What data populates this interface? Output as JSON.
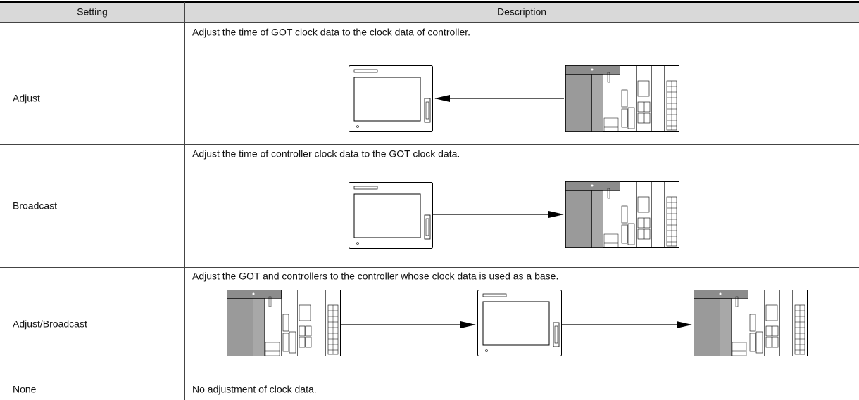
{
  "table": {
    "header": [
      "Setting",
      "Description"
    ],
    "rows": [
      [
        "Adjust",
        "Adjust the time of GOT clock data to the clock data of controller."
      ],
      [
        "Broadcast",
        "Adjust the time of controller clock data to the GOT clock data."
      ],
      [
        "Adjust/Broadcast",
        "Adjust the GOT and controllers to the controller whose clock data is used as a base."
      ],
      [
        "None",
        "No adjustment of clock data."
      ]
    ]
  }
}
